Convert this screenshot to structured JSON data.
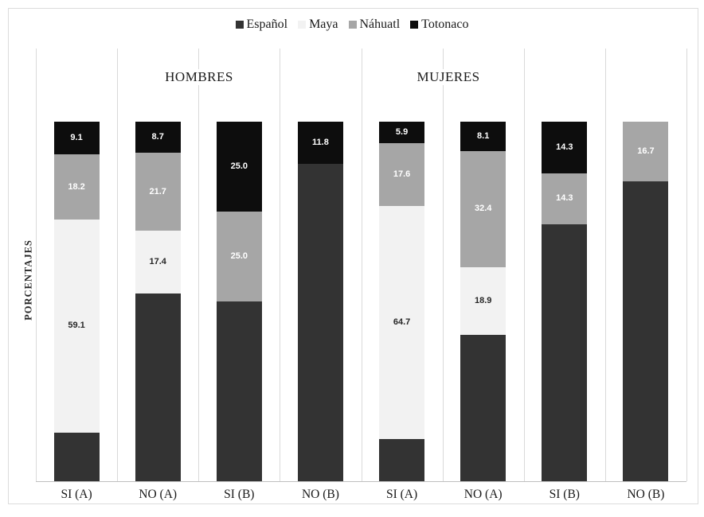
{
  "chart": {
    "y_axis_label": "PORCENTAJES"
  },
  "chart_data": {
    "type": "bar",
    "variant": "100-percent-stacked-vertical",
    "title": "",
    "xlabel": "",
    "ylabel": "PORCENTAJES",
    "ylim": [
      0,
      100
    ],
    "grid": "vertical category separators only",
    "legend_position": "top-center",
    "group_labels": [
      "HOMBRES",
      "MUJERES"
    ],
    "category_groups": [
      "HOMBRES",
      "HOMBRES",
      "HOMBRES",
      "HOMBRES",
      "MUJERES",
      "MUJERES",
      "MUJERES",
      "MUJERES"
    ],
    "categories": [
      "SI (A)",
      "NO (A)",
      "SI (B)",
      "NO (B)",
      "SI (A)",
      "NO (A)",
      "SI (B)",
      "NO (B)"
    ],
    "stack_order_bottom_to_top": [
      "Español",
      "Maya",
      "Náhuatl",
      "Totonaco"
    ],
    "series": [
      {
        "name": "Español",
        "color": "#333333",
        "label_color": "#ffffff",
        "show_labels": false,
        "values": [
          13.6,
          52.2,
          50.0,
          88.2,
          11.8,
          40.6,
          71.4,
          83.3
        ]
      },
      {
        "name": "Maya",
        "color": "#f2f2f2",
        "label_color": "#262626",
        "show_labels": true,
        "values": [
          59.1,
          17.4,
          0,
          0,
          64.7,
          18.9,
          0,
          0
        ]
      },
      {
        "name": "Náhuatl",
        "color": "#a6a6a6",
        "label_color": "#ffffff",
        "show_labels": true,
        "values": [
          18.2,
          21.7,
          25.0,
          0,
          17.6,
          32.4,
          14.3,
          16.7
        ]
      },
      {
        "name": "Totonaco",
        "color": "#0d0d0d",
        "label_color": "#ffffff",
        "show_labels": true,
        "values": [
          9.1,
          8.7,
          25.0,
          11.8,
          5.9,
          8.1,
          14.3,
          0
        ]
      }
    ]
  }
}
